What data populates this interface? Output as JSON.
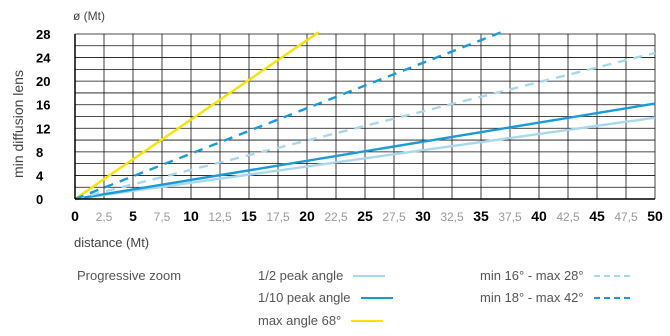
{
  "chart_data": {
    "type": "line",
    "ylabel": "min diffusion lens",
    "yunit": "ø (Mt)",
    "xlabel": "distance (Mt)",
    "xlim": [
      0,
      50
    ],
    "ylim": [
      0,
      28
    ],
    "grid": true,
    "x_ticks": [
      {
        "value": 0,
        "label": "0",
        "bold": true
      },
      {
        "value": 2.5,
        "label": "2,5",
        "bold": false
      },
      {
        "value": 5,
        "label": "5",
        "bold": true
      },
      {
        "value": 7.5,
        "label": "7,5",
        "bold": false
      },
      {
        "value": 10,
        "label": "10",
        "bold": true
      },
      {
        "value": 12.5,
        "label": "12,5",
        "bold": false
      },
      {
        "value": 15,
        "label": "15",
        "bold": true
      },
      {
        "value": 17.5,
        "label": "17,5",
        "bold": false
      },
      {
        "value": 20,
        "label": "20",
        "bold": true
      },
      {
        "value": 22.5,
        "label": "22,5",
        "bold": false
      },
      {
        "value": 25,
        "label": "25",
        "bold": true
      },
      {
        "value": 27.5,
        "label": "27,5",
        "bold": false
      },
      {
        "value": 30,
        "label": "30",
        "bold": true
      },
      {
        "value": 32.5,
        "label": "32,5",
        "bold": false
      },
      {
        "value": 35,
        "label": "35",
        "bold": true
      },
      {
        "value": 37.5,
        "label": "37,5",
        "bold": false
      },
      {
        "value": 40,
        "label": "40",
        "bold": true
      },
      {
        "value": 42.5,
        "label": "42,5",
        "bold": false
      },
      {
        "value": 45,
        "label": "45",
        "bold": true
      },
      {
        "value": 47.5,
        "label": "47,5",
        "bold": false
      },
      {
        "value": 50,
        "label": "50",
        "bold": true
      }
    ],
    "y_ticks": [
      {
        "value": 0,
        "label": "0"
      },
      {
        "value": 4,
        "label": "4"
      },
      {
        "value": 8,
        "label": "8"
      },
      {
        "value": 12,
        "label": "12"
      },
      {
        "value": 16,
        "label": "16"
      },
      {
        "value": 20,
        "label": "20"
      },
      {
        "value": 24,
        "label": "24"
      },
      {
        "value": 28,
        "label": "28"
      }
    ],
    "series": [
      {
        "name": "1/2 peak angle",
        "x": [
          0,
          50
        ],
        "y": [
          0,
          13.8
        ],
        "color": "#a8d8ee",
        "dash": false
      },
      {
        "name": "1/10 peak angle",
        "x": [
          0,
          50
        ],
        "y": [
          0,
          16.2
        ],
        "color": "#1a9ad6",
        "dash": false
      },
      {
        "name": "max angle 68°",
        "x": [
          0,
          21
        ],
        "y": [
          0,
          28.3
        ],
        "color": "#f5e400",
        "dash": false
      },
      {
        "name": "min 16° - max 28°",
        "x": [
          0,
          50
        ],
        "y": [
          0,
          24.8
        ],
        "color": "#a8d8ee",
        "dash": true
      },
      {
        "name": "min 18° - max 42°",
        "x": [
          0,
          37
        ],
        "y": [
          0,
          28.5
        ],
        "color": "#1a9ad6",
        "dash": true
      }
    ]
  },
  "legend": {
    "title": "Progressive zoom",
    "items": [
      {
        "label": "1/2 peak angle",
        "color": "#a8d8ee",
        "dash": false
      },
      {
        "label": "1/10 peak angle",
        "color": "#1a9ad6",
        "dash": false
      },
      {
        "label": "max angle 68°",
        "color": "#f5e400",
        "dash": false
      },
      {
        "label": "min 16° - max 28°",
        "color": "#a8d8ee",
        "dash": true
      },
      {
        "label": "min 18° - max 42°",
        "color": "#1a9ad6",
        "dash": true
      }
    ]
  }
}
